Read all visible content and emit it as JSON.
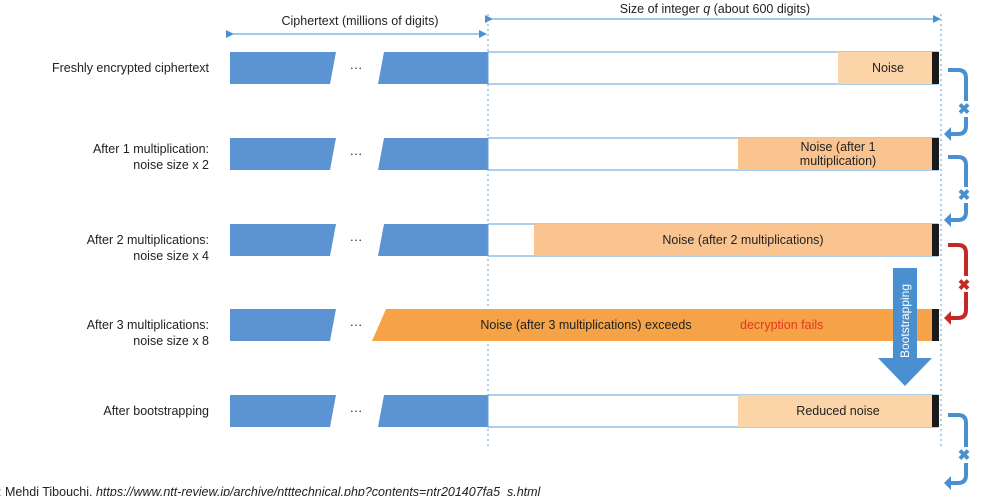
{
  "colors": {
    "ciphertext_blue": "#5b93d3",
    "noise_light": "#fbd5a8",
    "noise_medium": "#fac490",
    "noise_dark": "#f5a346",
    "fail_red": "#e03a1e",
    "guide_blue": "#5aa0d8",
    "arrow_blue": "#4a90d0",
    "arrow_red": "#c62828",
    "end_bar": "#1a1a1a"
  },
  "header": {
    "ciphertext_label": "Ciphertext (millions of digits)",
    "integer_size_prefix": "Size of integer ",
    "integer_size_var": "q",
    "integer_size_suffix": " (about 600 digits)"
  },
  "ellipsis": "···",
  "rows": [
    {
      "label_lines": [
        "Freshly encrypted ciphertext"
      ],
      "noise_lines": [
        "Noise"
      ]
    },
    {
      "label_lines": [
        "After 1 multiplication:",
        "noise size x 2"
      ],
      "noise_lines": [
        "Noise (after 1",
        "multiplication)"
      ]
    },
    {
      "label_lines": [
        "After 2 multiplications:",
        "noise size x 4"
      ],
      "noise_lines": [
        "Noise (after 2 multiplications)"
      ]
    },
    {
      "label_lines": [
        "After 3 multiplications:",
        "noise size x 8"
      ],
      "noise_lines": [
        "Noise (after 3 multiplications) exceeds"
      ],
      "fail_text": "decryption fails"
    },
    {
      "label_lines": [
        "After bootstrapping"
      ],
      "noise_lines": [
        "Reduced noise"
      ]
    }
  ],
  "side_arrows": [
    {
      "icon": "cross",
      "status": "ok"
    },
    {
      "icon": "cross",
      "status": "ok"
    },
    {
      "icon": "cross",
      "status": "fail"
    },
    {
      "icon": "cross",
      "status": "ok"
    }
  ],
  "bootstrapping_label": "Bootstrapping",
  "citation": {
    "prefix": ": Mehdi Tibouchi, ",
    "url": "https://www.ntt-review.jp/archive/ntttechnical.php?contents=ntr201407fa5_s.html"
  }
}
